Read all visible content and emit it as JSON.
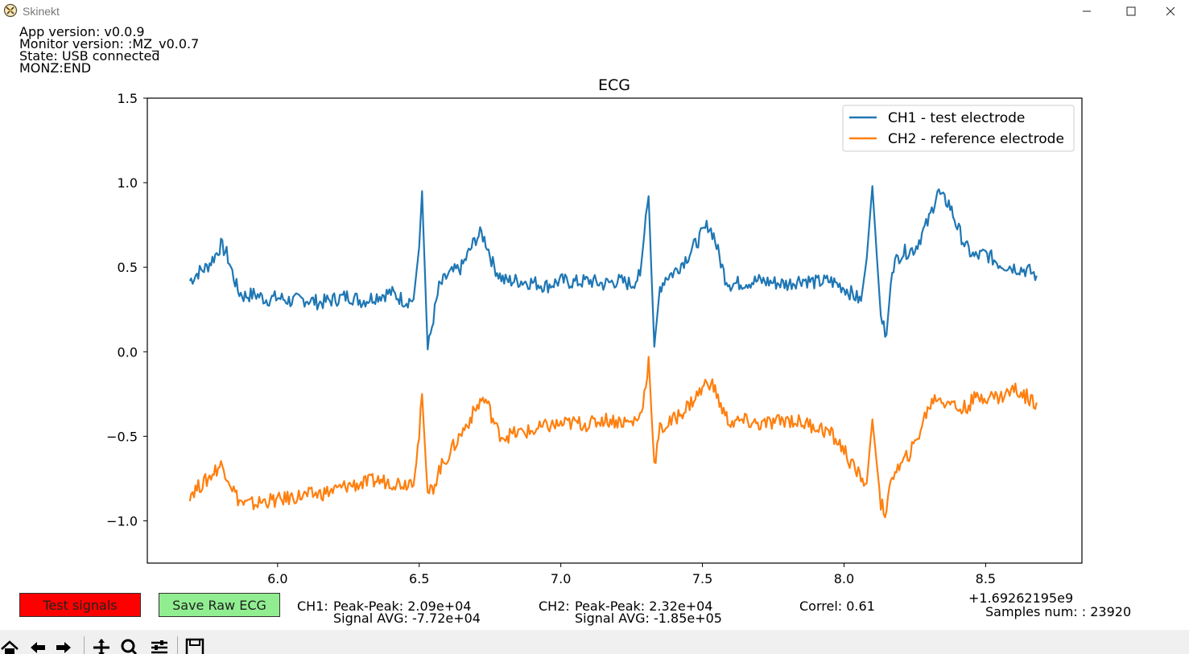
{
  "window": {
    "title": "Skinekt"
  },
  "info": {
    "app_version": "App version: v0.0.9",
    "monitor_version": "Monitor version: :MZ_v0.0.7",
    "state": "State: USB connected",
    "monz": "MONZ:END"
  },
  "buttons": {
    "test_signals": "Test signals",
    "save_raw_ecg": "Save Raw ECG",
    "test_color": "#ff0000",
    "save_color": "#90ee90"
  },
  "stats": {
    "ch1_label": "CH1:",
    "ch1_pp": "Peak-Peak: 2.09e+04",
    "ch1_avg": "Signal AVG: -7.72e+04",
    "ch2_label": "CH2:",
    "ch2_pp": "Peak-Peak: 2.32e+04",
    "ch2_avg": "Signal AVG: -1.85e+05",
    "correl": "Correl: 0.61",
    "offset": "+1.69262195e9",
    "samples": "Samples num: : 23920"
  },
  "toolbar_icons": [
    "home-icon",
    "back-icon",
    "forward-icon",
    "pan-icon",
    "zoom-icon",
    "configure-icon",
    "save-icon"
  ],
  "chart_data": {
    "type": "line",
    "title": "ECG",
    "xlim": [
      5.54,
      8.84
    ],
    "ylim": [
      -1.25,
      1.5
    ],
    "xticks": [
      6.0,
      6.5,
      7.0,
      7.5,
      8.0,
      8.5
    ],
    "xtick_labels": [
      "6.0",
      "6.5",
      "7.0",
      "7.5",
      "8.0",
      "8.5"
    ],
    "yticks": [
      1.5,
      1.0,
      0.5,
      0.0,
      -0.5,
      -1.0
    ],
    "ytick_labels": [
      "1.5",
      "1.0",
      "0.5",
      "0.0",
      "−0.5",
      "−1.0"
    ],
    "grid": false,
    "legend": "top-right",
    "series": [
      {
        "name": "CH1 - test electrode",
        "color": "#1f77b4",
        "x": [
          5.69,
          5.72,
          5.75,
          5.78,
          5.8,
          5.82,
          5.84,
          5.86,
          5.88,
          5.92,
          5.96,
          6.0,
          6.05,
          6.1,
          6.15,
          6.2,
          6.25,
          6.3,
          6.35,
          6.4,
          6.45,
          6.48,
          6.5,
          6.51,
          6.53,
          6.55,
          6.57,
          6.6,
          6.65,
          6.7,
          6.72,
          6.74,
          6.76,
          6.78,
          6.8,
          6.85,
          6.9,
          6.95,
          7.0,
          7.05,
          7.1,
          7.15,
          7.2,
          7.25,
          7.28,
          7.3,
          7.31,
          7.33,
          7.35,
          7.37,
          7.4,
          7.45,
          7.5,
          7.52,
          7.54,
          7.56,
          7.58,
          7.6,
          7.65,
          7.7,
          7.75,
          7.8,
          7.85,
          7.9,
          7.95,
          8.0,
          8.03,
          8.06,
          8.08,
          8.1,
          8.13,
          8.15,
          8.17,
          8.2,
          8.25,
          8.3,
          8.33,
          8.35,
          8.37,
          8.4,
          8.43,
          8.46,
          8.5,
          8.55,
          8.6,
          8.65,
          8.68
        ],
        "y": [
          0.42,
          0.47,
          0.5,
          0.57,
          0.63,
          0.58,
          0.47,
          0.36,
          0.33,
          0.34,
          0.31,
          0.32,
          0.3,
          0.31,
          0.29,
          0.31,
          0.33,
          0.3,
          0.33,
          0.35,
          0.3,
          0.31,
          0.62,
          0.95,
          0.01,
          0.2,
          0.38,
          0.45,
          0.5,
          0.67,
          0.7,
          0.63,
          0.52,
          0.46,
          0.42,
          0.42,
          0.41,
          0.39,
          0.42,
          0.41,
          0.42,
          0.4,
          0.42,
          0.4,
          0.45,
          0.78,
          0.92,
          0.03,
          0.38,
          0.44,
          0.47,
          0.57,
          0.7,
          0.75,
          0.69,
          0.56,
          0.44,
          0.4,
          0.41,
          0.42,
          0.41,
          0.4,
          0.43,
          0.41,
          0.42,
          0.38,
          0.34,
          0.3,
          0.55,
          0.98,
          0.2,
          0.1,
          0.5,
          0.58,
          0.61,
          0.78,
          0.95,
          0.9,
          0.88,
          0.74,
          0.62,
          0.56,
          0.58,
          0.52,
          0.5,
          0.48,
          0.45
        ]
      },
      {
        "name": "CH2 - reference electrode",
        "color": "#ff7f0e",
        "x": [
          5.69,
          5.72,
          5.75,
          5.78,
          5.8,
          5.82,
          5.84,
          5.86,
          5.88,
          5.92,
          5.96,
          6.0,
          6.05,
          6.1,
          6.15,
          6.2,
          6.25,
          6.3,
          6.35,
          6.4,
          6.45,
          6.48,
          6.5,
          6.51,
          6.53,
          6.55,
          6.57,
          6.6,
          6.65,
          6.7,
          6.72,
          6.74,
          6.76,
          6.78,
          6.8,
          6.85,
          6.9,
          6.95,
          7.0,
          7.05,
          7.1,
          7.15,
          7.2,
          7.25,
          7.28,
          7.3,
          7.31,
          7.33,
          7.35,
          7.37,
          7.4,
          7.45,
          7.5,
          7.52,
          7.54,
          7.56,
          7.58,
          7.6,
          7.65,
          7.7,
          7.75,
          7.8,
          7.85,
          7.9,
          7.95,
          8.0,
          8.03,
          8.06,
          8.08,
          8.1,
          8.13,
          8.15,
          8.17,
          8.2,
          8.25,
          8.3,
          8.33,
          8.35,
          8.37,
          8.4,
          8.43,
          8.46,
          8.5,
          8.55,
          8.6,
          8.65,
          8.68
        ],
        "y": [
          -0.84,
          -0.8,
          -0.76,
          -0.7,
          -0.67,
          -0.72,
          -0.8,
          -0.87,
          -0.9,
          -0.9,
          -0.88,
          -0.88,
          -0.86,
          -0.85,
          -0.84,
          -0.82,
          -0.79,
          -0.78,
          -0.76,
          -0.77,
          -0.78,
          -0.75,
          -0.5,
          -0.25,
          -0.85,
          -0.8,
          -0.7,
          -0.62,
          -0.48,
          -0.34,
          -0.28,
          -0.3,
          -0.4,
          -0.48,
          -0.5,
          -0.48,
          -0.47,
          -0.44,
          -0.43,
          -0.42,
          -0.43,
          -0.4,
          -0.41,
          -0.42,
          -0.38,
          -0.2,
          -0.03,
          -0.68,
          -0.46,
          -0.44,
          -0.4,
          -0.32,
          -0.22,
          -0.17,
          -0.21,
          -0.3,
          -0.38,
          -0.42,
          -0.41,
          -0.43,
          -0.42,
          -0.4,
          -0.42,
          -0.44,
          -0.48,
          -0.58,
          -0.68,
          -0.74,
          -0.78,
          -0.4,
          -0.9,
          -0.96,
          -0.72,
          -0.68,
          -0.55,
          -0.32,
          -0.26,
          -0.3,
          -0.28,
          -0.34,
          -0.33,
          -0.28,
          -0.26,
          -0.27,
          -0.22,
          -0.27,
          -0.3
        ]
      }
    ]
  }
}
